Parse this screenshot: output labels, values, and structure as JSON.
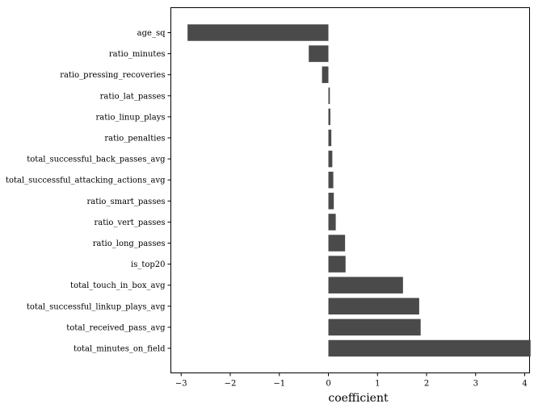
{
  "chart_data": {
    "type": "bar",
    "orientation": "horizontal",
    "xlabel": "coefficient",
    "ylabel": "",
    "title": "",
    "xlim": [
      -3.2,
      4.3
    ],
    "xticks": [
      -3,
      -2,
      -1,
      0,
      1,
      2,
      3,
      4
    ],
    "xtick_labels": [
      "−3",
      "−2",
      "−1",
      "0",
      "1",
      "2",
      "3",
      "4"
    ],
    "grid": false,
    "bar_color": "#4a4a4a",
    "categories": [
      "age_sq",
      "ratio_minutes",
      "ratio_pressing_recoveries",
      "ratio_lat_passes",
      "ratio_linup_plays",
      "ratio_penalties",
      "total_successful_back_passes_avg",
      "total_successful_attacking_actions_avg",
      "ratio_smart_passes",
      "ratio_vert_passes",
      "ratio_long_passes",
      "is_top20",
      "total_touch_in_box_avg",
      "total_successful_linkup_plays_avg",
      "total_received_pass_avg",
      "total_minutes_on_field"
    ],
    "values": [
      -2.87,
      -0.4,
      -0.13,
      0.03,
      0.04,
      0.06,
      0.08,
      0.1,
      0.11,
      0.15,
      0.34,
      0.35,
      1.52,
      1.85,
      1.88,
      4.12
    ]
  }
}
